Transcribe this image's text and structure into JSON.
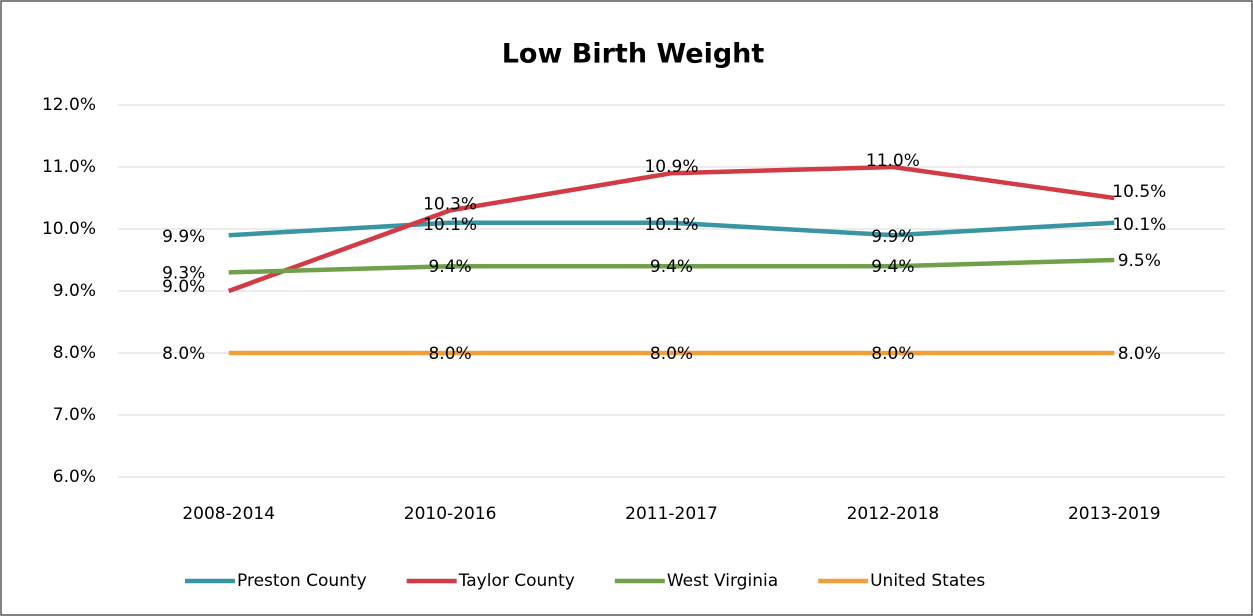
{
  "chart_data": {
    "type": "line",
    "title": "Low Birth Weight",
    "categories": [
      "2008-2014",
      "2010-2016",
      "2011-2017",
      "2012-2018",
      "2013-2019"
    ],
    "series": [
      {
        "name": "Preston County",
        "color": "#3a95a3",
        "values": [
          9.9,
          10.1,
          10.1,
          9.9,
          10.1
        ],
        "value_labels": [
          "9.9%",
          "10.1%",
          "10.1%",
          "9.9%",
          "10.1%"
        ]
      },
      {
        "name": "Taylor County",
        "color": "#d13b45",
        "values": [
          9.0,
          10.3,
          10.9,
          11.0,
          10.5
        ],
        "value_labels": [
          "9.0%",
          "10.3%",
          "10.9%",
          "11.0%",
          "10.5%"
        ]
      },
      {
        "name": "West Virginia",
        "color": "#71a04b",
        "values": [
          9.3,
          9.4,
          9.4,
          9.4,
          9.5
        ],
        "value_labels": [
          "9.3%",
          "9.4%",
          "9.4%",
          "9.4%",
          "9.5%"
        ]
      },
      {
        "name": "United States",
        "color": "#f0a03b",
        "values": [
          8.0,
          8.0,
          8.0,
          8.0,
          8.0
        ],
        "value_labels": [
          "8.0%",
          "8.0%",
          "8.0%",
          "8.0%",
          "8.0%"
        ]
      }
    ],
    "ylim": [
      6,
      12
    ],
    "yticks": [
      {
        "value": 6,
        "label": "6.0%"
      },
      {
        "value": 7,
        "label": "7.0%"
      },
      {
        "value": 8,
        "label": "8.0%"
      },
      {
        "value": 9,
        "label": "9.0%"
      },
      {
        "value": 10,
        "label": "10.0%"
      },
      {
        "value": 11,
        "label": "11.0%"
      },
      {
        "value": 12,
        "label": "12.0%"
      }
    ],
    "grid": true,
    "legend": "bottom"
  }
}
